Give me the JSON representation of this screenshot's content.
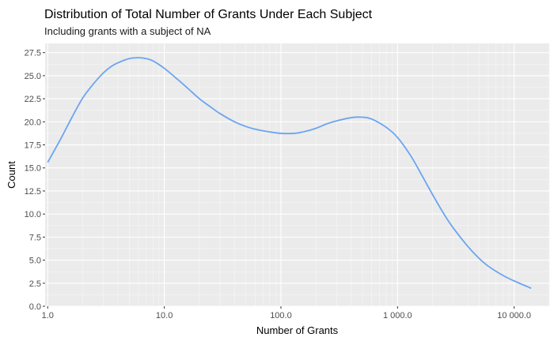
{
  "chart_data": {
    "type": "line",
    "title": "Distribution of Total Number of Grants Under Each Subject",
    "subtitle": "Including grants with a subject of NA",
    "xlabel": "Number of Grants",
    "ylabel": "Count",
    "x_scale": "log10",
    "xlim": [
      0.95,
      20000
    ],
    "ylim": [
      0,
      28.5
    ],
    "x_ticks": [
      1,
      10,
      100,
      1000,
      10000
    ],
    "x_tick_labels": [
      "1.0",
      "10.0",
      "100.0",
      "1 000.0",
      "10 000.0"
    ],
    "y_ticks": [
      0,
      2.5,
      5,
      7.5,
      10,
      12.5,
      15,
      17.5,
      20,
      22.5,
      25,
      27.5
    ],
    "y_tick_labels": [
      "0.0",
      "2.5",
      "5.0",
      "7.5",
      "10.0",
      "12.5",
      "15.0",
      "17.5",
      "20.0",
      "22.5",
      "25.0",
      "27.5"
    ],
    "grid": true,
    "background": "#ebebeb",
    "line_color": "#6aa5f0",
    "series": [
      {
        "x": [
          1,
          1.3,
          1.6,
          2,
          2.5,
          3,
          3.5,
          4,
          5,
          6,
          7,
          8,
          10,
          13,
          16,
          20,
          25,
          30,
          40,
          50,
          60,
          80,
          100,
          130,
          160,
          200,
          250,
          300,
          400,
          500,
          600,
          800,
          1000,
          1300,
          1600,
          2000,
          2500,
          3000,
          4000,
          5000,
          6000,
          8000,
          10000,
          14000
        ],
        "y": [
          15.6,
          18.2,
          20.4,
          22.6,
          24.2,
          25.3,
          26.0,
          26.4,
          26.85,
          26.95,
          26.85,
          26.6,
          25.8,
          24.6,
          23.6,
          22.5,
          21.6,
          20.9,
          20.0,
          19.5,
          19.2,
          18.9,
          18.75,
          18.75,
          18.95,
          19.3,
          19.8,
          20.1,
          20.45,
          20.5,
          20.3,
          19.4,
          18.3,
          16.3,
          14.3,
          12.1,
          10.0,
          8.5,
          6.5,
          5.2,
          4.35,
          3.35,
          2.75,
          1.95
        ]
      }
    ]
  }
}
